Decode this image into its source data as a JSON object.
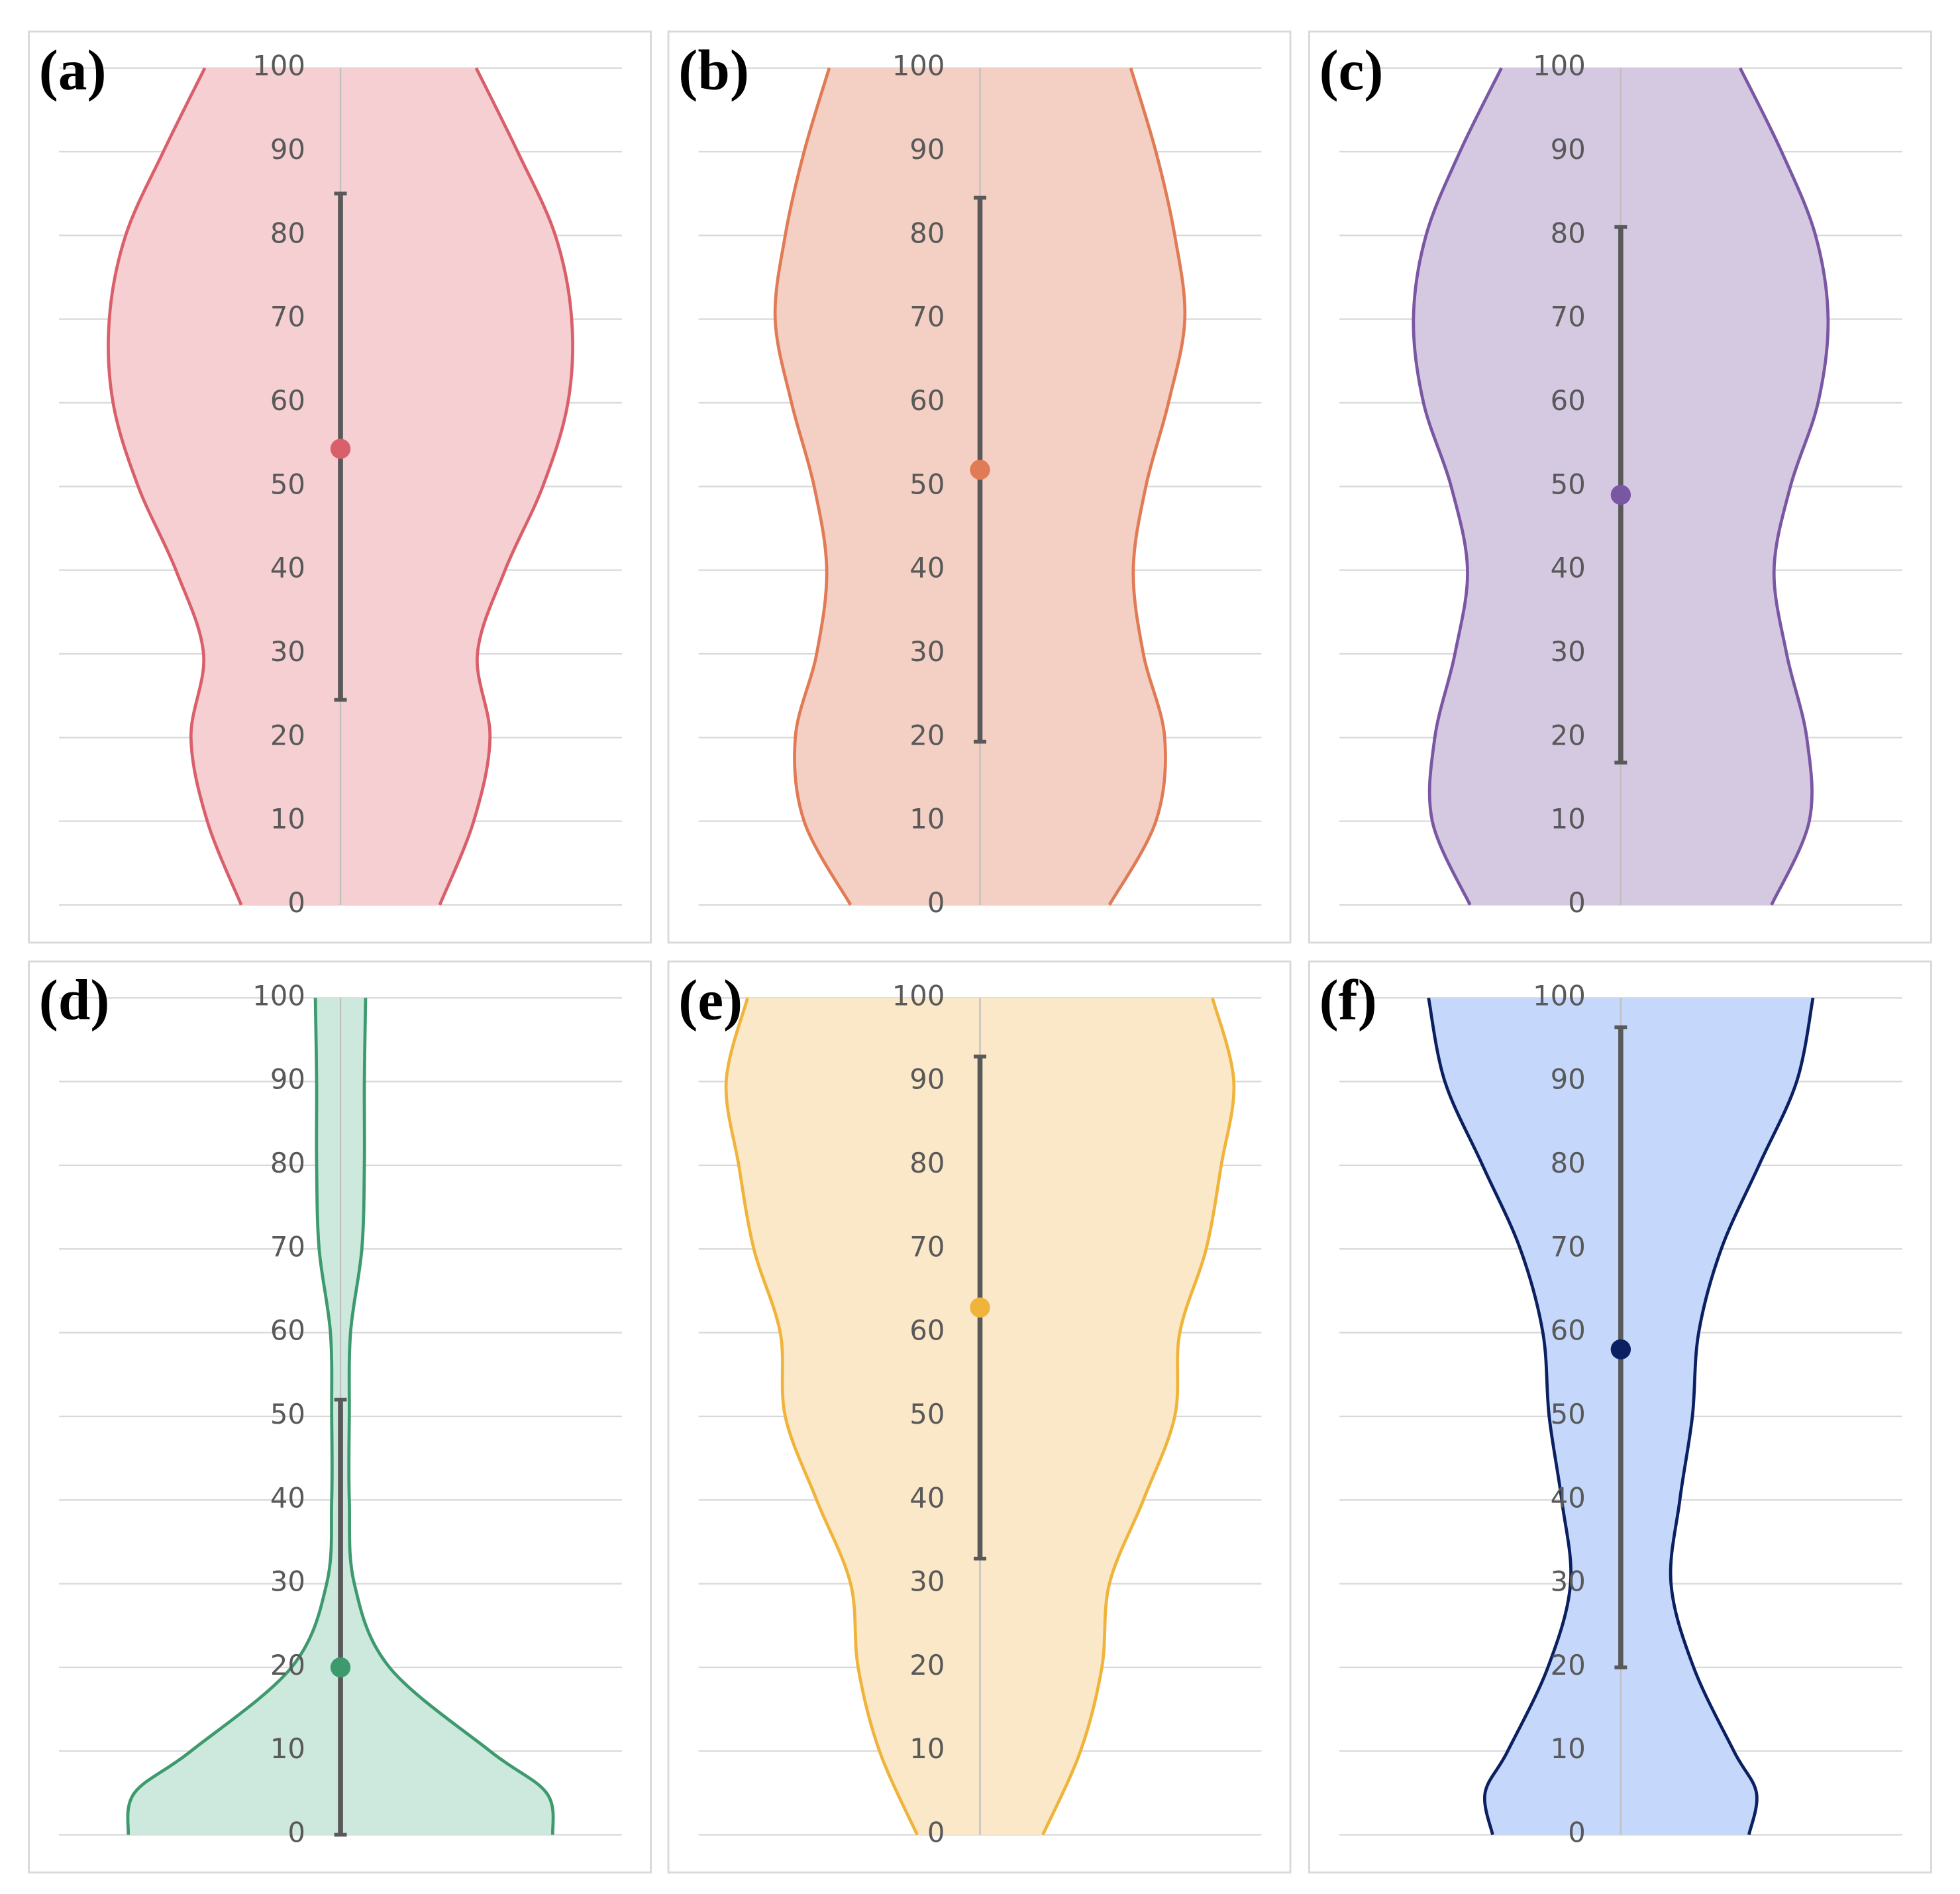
{
  "chart_data": [
    {
      "type": "violin",
      "label": "(a)",
      "ylim": [
        0,
        100
      ],
      "yticks": [
        0,
        10,
        20,
        30,
        40,
        50,
        60,
        70,
        80,
        90,
        100
      ],
      "grid": true,
      "density_y": [
        0,
        10,
        20,
        30,
        40,
        50,
        60,
        70,
        80,
        90,
        100
      ],
      "density": [
        79,
        106,
        119,
        109,
        131,
        161,
        181,
        184,
        171,
        141,
        108
      ],
      "mean": 54.5,
      "error_low": 24.5,
      "error_high": 85,
      "color": "#d9606a",
      "fill": "#f5cfd2"
    },
    {
      "type": "violin",
      "label": "(b)",
      "ylim": [
        0,
        100
      ],
      "yticks": [
        0,
        10,
        20,
        30,
        40,
        50,
        60,
        70,
        80,
        90,
        100
      ],
      "grid": true,
      "density_y": [
        0,
        10,
        20,
        30,
        40,
        50,
        60,
        70,
        80,
        90,
        100
      ],
      "density": [
        103,
        140,
        147,
        130,
        122,
        132,
        150,
        163,
        155,
        140,
        120
      ],
      "mean": 52,
      "error_low": 19.5,
      "error_high": 84.5,
      "color": "#e07b55",
      "fill": "#f4d0c4"
    },
    {
      "type": "violin",
      "label": "(c)",
      "ylim": [
        0,
        100
      ],
      "yticks": [
        0,
        10,
        20,
        30,
        40,
        50,
        60,
        70,
        80,
        90,
        100
      ],
      "grid": true,
      "density_y": [
        0,
        10,
        20,
        30,
        40,
        50,
        60,
        70,
        80,
        90,
        100
      ],
      "density": [
        120,
        150,
        148,
        132,
        122,
        135,
        157,
        165,
        155,
        128,
        95
      ],
      "mean": 49,
      "error_low": 17,
      "error_high": 81,
      "color": "#7a57a3",
      "fill": "#d5c9e2"
    },
    {
      "type": "violin",
      "label": "(d)",
      "ylim": [
        0,
        100
      ],
      "yticks": [
        0,
        10,
        20,
        30,
        40,
        50,
        60,
        70,
        80,
        90,
        100
      ],
      "grid": true,
      "density_y": [
        0,
        5,
        10,
        20,
        30,
        40,
        50,
        60,
        70,
        80,
        90,
        100
      ],
      "density": [
        169,
        164,
        119,
        39,
        11,
        7,
        7,
        8,
        17,
        19,
        19,
        20
      ],
      "mean": 20,
      "error_low": 0,
      "error_high": 52,
      "color": "#3d9a6e",
      "fill": "#cde8dc"
    },
    {
      "type": "violin",
      "label": "(e)",
      "ylim": [
        0,
        100
      ],
      "yticks": [
        0,
        10,
        20,
        30,
        40,
        50,
        60,
        70,
        80,
        90,
        100
      ],
      "grid": true,
      "density_y": [
        0,
        10,
        20,
        30,
        40,
        50,
        60,
        70,
        80,
        90,
        100
      ],
      "density": [
        50,
        80,
        97,
        103,
        130,
        155,
        159,
        180,
        192,
        202,
        185
      ],
      "mean": 63,
      "error_low": 33,
      "error_high": 93,
      "color": "#f0b43c",
      "fill": "#fae8c8"
    },
    {
      "type": "violin",
      "label": "(f)",
      "ylim": [
        0,
        100
      ],
      "yticks": [
        0,
        10,
        20,
        30,
        40,
        50,
        60,
        70,
        80,
        90,
        100
      ],
      "grid": true,
      "density_y": [
        0,
        5,
        10,
        20,
        30,
        40,
        50,
        60,
        70,
        80,
        90,
        100
      ],
      "density": [
        102,
        108,
        90,
        58,
        40,
        47,
        57,
        62,
        80,
        110,
        140,
        153
      ],
      "mean": 58,
      "error_low": 20,
      "error_high": 96.5,
      "color": "#0b2060",
      "fill": "#c5d8fb"
    }
  ]
}
